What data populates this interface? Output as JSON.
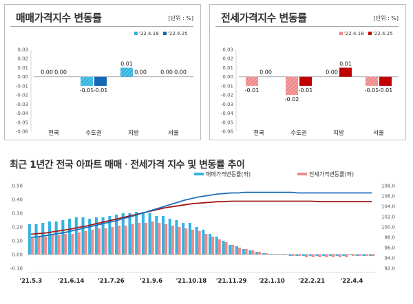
{
  "panels": [
    {
      "title": "매매가격지수 변동률",
      "unit": "[단위 : %]"
    },
    {
      "title": "전세가격지수 변동률",
      "unit": "[단위 : %]"
    }
  ],
  "bottom": {
    "title": "최근 1년간 전국 아파트 매매ㆍ전세가격 지수 및 변동률 추이"
  },
  "colors": {
    "sale_light": "#35b3e2",
    "sale_dark": "#1667b5",
    "jeonse_light": "#f08a8a",
    "jeonse_dark": "#c00000",
    "sale_index_line": "#1f6fb8",
    "jeonse_index_line": "#a01818"
  },
  "chart_data": [
    {
      "type": "bar",
      "title": "매매가격지수 변동률",
      "categories": [
        "전국",
        "수도권",
        "지방",
        "서울"
      ],
      "series": [
        {
          "name": "'22.4.18",
          "values": [
            0.0,
            -0.01,
            0.01,
            0.0
          ],
          "labels": [
            "0.00",
            "-0.01",
            "0.01",
            "0.00"
          ]
        },
        {
          "name": "'22.4.25",
          "values": [
            0.0,
            -0.01,
            0.0,
            0.0
          ],
          "labels": [
            "0.00",
            "-0.01",
            "0.00",
            "0.00"
          ]
        }
      ],
      "y_ticks": [
        "0.03",
        "0.02",
        "0.01",
        "0.00",
        "-0.01",
        "-0.02",
        "-0.03",
        "-0.04",
        "-0.05",
        "-0.06"
      ],
      "ylim": [
        -0.06,
        0.03
      ],
      "legend_position": "top-right"
    },
    {
      "type": "bar",
      "title": "전세가격지수 변동률",
      "categories": [
        "전국",
        "수도권",
        "지방",
        "서울"
      ],
      "series": [
        {
          "name": "'22.4.18",
          "values": [
            -0.01,
            -0.02,
            0.0,
            -0.01
          ],
          "labels": [
            "-0.01",
            "-0.02",
            "0.00",
            "-0.01"
          ]
        },
        {
          "name": "'22.4.25",
          "values": [
            0.0,
            -0.01,
            0.01,
            -0.01
          ],
          "labels": [
            "0.00",
            "-0.01",
            "0.01",
            "-0.01"
          ]
        }
      ],
      "y_ticks": [
        "0.03",
        "0.02",
        "0.01",
        "0.00",
        "-0.01",
        "-0.02",
        "-0.03",
        "-0.04",
        "-0.05",
        "-0.06"
      ],
      "ylim": [
        -0.06,
        0.03
      ],
      "legend_position": "top-right"
    },
    {
      "type": "bar",
      "title": "최근 1년간 전국 아파트 매매ㆍ전세가격 지수 및 변동률 추이",
      "x_labels": [
        "'21.5.3",
        "'21.6.14",
        "'21.7.26",
        "'21.9.6",
        "'21.10.18",
        "'21.11.29",
        "'22.1.10",
        "'22.2.21",
        "'22.4.4"
      ],
      "x_label_weeks": [
        0,
        6,
        12,
        18,
        24,
        30,
        36,
        42,
        48
      ],
      "weeks": 52,
      "series": [
        {
          "name": "매매가격변동률(좌)",
          "axis": "left",
          "values": [
            0.22,
            0.22,
            0.23,
            0.24,
            0.24,
            0.25,
            0.26,
            0.27,
            0.27,
            0.26,
            0.27,
            0.27,
            0.28,
            0.29,
            0.3,
            0.3,
            0.31,
            0.31,
            0.3,
            0.28,
            0.28,
            0.26,
            0.25,
            0.23,
            0.23,
            0.2,
            0.18,
            0.15,
            0.13,
            0.1,
            0.07,
            0.06,
            0.04,
            0.03,
            0.02,
            0.01,
            0.0,
            0.0,
            0.0,
            -0.01,
            -0.01,
            -0.01,
            -0.01,
            -0.01,
            -0.01,
            -0.01,
            -0.01,
            -0.01,
            0.0,
            -0.01,
            -0.01,
            -0.01
          ]
        },
        {
          "name": "전세가격변동률(좌)",
          "axis": "left",
          "values": [
            0.12,
            0.13,
            0.13,
            0.14,
            0.14,
            0.15,
            0.15,
            0.16,
            0.17,
            0.18,
            0.19,
            0.19,
            0.2,
            0.21,
            0.21,
            0.22,
            0.23,
            0.23,
            0.24,
            0.23,
            0.22,
            0.21,
            0.2,
            0.19,
            0.18,
            0.17,
            0.15,
            0.13,
            0.11,
            0.09,
            0.07,
            0.05,
            0.04,
            0.03,
            0.02,
            0.01,
            0.0,
            0.0,
            0.0,
            -0.01,
            -0.01,
            -0.02,
            -0.02,
            -0.02,
            -0.02,
            -0.02,
            -0.02,
            -0.02,
            -0.01,
            -0.01,
            -0.01,
            -0.01
          ]
        },
        {
          "name": "매매가격지수(우)",
          "axis": "right",
          "type": "line",
          "values": [
            98.0,
            98.1,
            98.3,
            98.5,
            98.7,
            98.9,
            99.2,
            99.5,
            99.8,
            100.1,
            100.4,
            100.7,
            101.0,
            101.3,
            101.7,
            102.0,
            102.4,
            102.8,
            103.2,
            103.6,
            104.0,
            104.4,
            104.8,
            105.2,
            105.5,
            105.8,
            106.0,
            106.2,
            106.4,
            106.5,
            106.6,
            106.6,
            106.7,
            106.7,
            106.7,
            106.7,
            106.7,
            106.7,
            106.7,
            106.7,
            106.6,
            106.6,
            106.6,
            106.6,
            106.6,
            106.6,
            106.6,
            106.6,
            106.6,
            106.6,
            106.6,
            106.6
          ]
        },
        {
          "name": "전세가격지수(우)",
          "axis": "right",
          "type": "line",
          "values": [
            98.6,
            98.7,
            98.8,
            99.0,
            99.2,
            99.4,
            99.6,
            99.9,
            100.1,
            100.4,
            100.7,
            101.0,
            101.3,
            101.6,
            101.9,
            102.2,
            102.5,
            102.8,
            103.1,
            103.4,
            103.7,
            103.9,
            104.1,
            104.3,
            104.5,
            104.6,
            104.7,
            104.8,
            104.9,
            104.9,
            105.0,
            105.0,
            105.0,
            105.0,
            105.0,
            105.0,
            105.0,
            105.0,
            105.0,
            105.0,
            105.0,
            105.0,
            105.0,
            104.9,
            104.9,
            104.9,
            104.9,
            104.9,
            104.9,
            104.9,
            104.9,
            104.9
          ]
        }
      ],
      "left_ticks": [
        "0.50",
        "0.40",
        "0.30",
        "0.20",
        "0.10",
        "0.00",
        "-0.10"
      ],
      "left_ylim": [
        -0.1,
        0.5
      ],
      "right_ticks": [
        "108.0",
        "106.0",
        "104.0",
        "102.0",
        "100.0",
        "98.0",
        "96.0",
        "94.0",
        "92.0"
      ],
      "right_ylim": [
        92.0,
        108.0
      ],
      "legend_position": "top-right"
    }
  ]
}
